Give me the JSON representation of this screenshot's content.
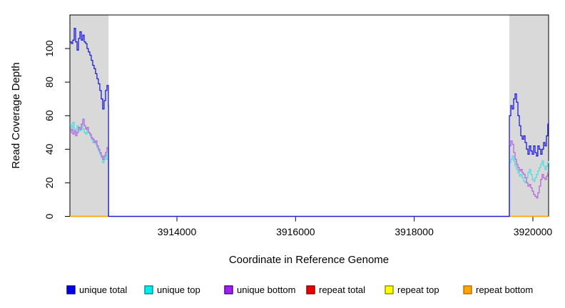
{
  "figure": {
    "xlabel": "Coordinate in Reference Genome",
    "ylabel": "Read Coverage Depth"
  },
  "legend": {
    "items": [
      {
        "label": "unique total",
        "fill": "#0000ee",
        "border": "#000090"
      },
      {
        "label": "unique top",
        "fill": "#00eeee",
        "border": "#008b8b"
      },
      {
        "label": "unique bottom",
        "fill": "#a020f0",
        "border": "#4b0082"
      },
      {
        "label": "repeat total",
        "fill": "#ee0000",
        "border": "#8b0000"
      },
      {
        "label": "repeat top",
        "fill": "#ffff00",
        "border": "#8b8b00"
      },
      {
        "label": "repeat bottom",
        "fill": "#ffa500",
        "border": "#b86b00"
      }
    ]
  },
  "chart_data": {
    "type": "line",
    "title": "",
    "xlabel": "Coordinate in Reference Genome",
    "ylabel": "Read Coverage Depth",
    "xlim": [
      3912196,
      3920265
    ],
    "ylim": [
      0,
      120
    ],
    "x_ticks": [
      3914000,
      3916000,
      3918000,
      3920000
    ],
    "x_tick_labels": [
      "3914000",
      "3916000",
      "3918000",
      "3920000"
    ],
    "y_ticks": [
      0,
      20,
      40,
      60,
      80,
      100
    ],
    "grid": false,
    "legend_position": "bottom",
    "highlight_color": "#d9d9d9",
    "highlight_regions": [
      [
        3912196,
        3912846
      ],
      [
        3919603,
        3920265
      ]
    ],
    "box_color": "#000000",
    "series": [
      {
        "name": "repeat total",
        "color": "#dd0000",
        "points": [
          [
            3912196,
            0
          ],
          [
            3920265,
            0
          ]
        ]
      },
      {
        "name": "repeat top",
        "color": "#ffff00",
        "points": [
          [
            3912196,
            0
          ],
          [
            3920265,
            0
          ]
        ]
      },
      {
        "name": "repeat bottom",
        "color": "#ffa500",
        "points": [
          [
            3912196,
            0
          ],
          [
            3920265,
            0
          ]
        ]
      },
      {
        "name": "unique top",
        "color": "#50dbe4",
        "points": [
          [
            3912196,
            55
          ],
          [
            3912220,
            53
          ],
          [
            3912244,
            56
          ],
          [
            3912268,
            52
          ],
          [
            3912292,
            50
          ],
          [
            3912316,
            54
          ],
          [
            3912340,
            53
          ],
          [
            3912364,
            51
          ],
          [
            3912388,
            55
          ],
          [
            3912412,
            52
          ],
          [
            3912436,
            50
          ],
          [
            3912460,
            49
          ],
          [
            3912484,
            52
          ],
          [
            3912508,
            50
          ],
          [
            3912532,
            48
          ],
          [
            3912556,
            46
          ],
          [
            3912580,
            44
          ],
          [
            3912604,
            45
          ],
          [
            3912628,
            43
          ],
          [
            3912652,
            41
          ],
          [
            3912676,
            39
          ],
          [
            3912700,
            37
          ],
          [
            3912724,
            35
          ],
          [
            3912748,
            32
          ],
          [
            3912772,
            34
          ],
          [
            3912796,
            37
          ],
          [
            3912820,
            34
          ],
          [
            3912844,
            31
          ],
          [
            3912846,
            0
          ],
          [
            3919603,
            0
          ],
          [
            3919604,
            32
          ],
          [
            3919628,
            34
          ],
          [
            3919652,
            36
          ],
          [
            3919676,
            33
          ],
          [
            3919700,
            30
          ],
          [
            3919724,
            28
          ],
          [
            3919748,
            26
          ],
          [
            3919772,
            24
          ],
          [
            3919796,
            25
          ],
          [
            3919820,
            23
          ],
          [
            3919844,
            21
          ],
          [
            3919868,
            20
          ],
          [
            3919892,
            23
          ],
          [
            3919916,
            26
          ],
          [
            3919940,
            28
          ],
          [
            3919964,
            25
          ],
          [
            3919988,
            22
          ],
          [
            3920012,
            21
          ],
          [
            3920036,
            23
          ],
          [
            3920060,
            25
          ],
          [
            3920084,
            27
          ],
          [
            3920108,
            29
          ],
          [
            3920132,
            31
          ],
          [
            3920156,
            33
          ],
          [
            3920180,
            30
          ],
          [
            3920204,
            28
          ],
          [
            3920228,
            30
          ],
          [
            3920252,
            32
          ],
          [
            3920265,
            33
          ]
        ]
      },
      {
        "name": "unique bottom",
        "color": "#b468dc",
        "points": [
          [
            3912196,
            50
          ],
          [
            3912220,
            52
          ],
          [
            3912244,
            49
          ],
          [
            3912268,
            51
          ],
          [
            3912292,
            48
          ],
          [
            3912316,
            50
          ],
          [
            3912340,
            53
          ],
          [
            3912364,
            52
          ],
          [
            3912388,
            55
          ],
          [
            3912412,
            58
          ],
          [
            3912436,
            54
          ],
          [
            3912460,
            52
          ],
          [
            3912484,
            53
          ],
          [
            3912508,
            50
          ],
          [
            3912532,
            49
          ],
          [
            3912556,
            47
          ],
          [
            3912580,
            46
          ],
          [
            3912604,
            44
          ],
          [
            3912628,
            45
          ],
          [
            3912652,
            42
          ],
          [
            3912676,
            40
          ],
          [
            3912700,
            38
          ],
          [
            3912724,
            36
          ],
          [
            3912748,
            34
          ],
          [
            3912772,
            36
          ],
          [
            3912796,
            38
          ],
          [
            3912820,
            41
          ],
          [
            3912844,
            40
          ],
          [
            3912846,
            0
          ],
          [
            3919603,
            0
          ],
          [
            3919604,
            42
          ],
          [
            3919628,
            45
          ],
          [
            3919652,
            43
          ],
          [
            3919676,
            38
          ],
          [
            3919700,
            34
          ],
          [
            3919724,
            31
          ],
          [
            3919748,
            29
          ],
          [
            3919772,
            27
          ],
          [
            3919796,
            28
          ],
          [
            3919820,
            26
          ],
          [
            3919844,
            25
          ],
          [
            3919868,
            23
          ],
          [
            3919892,
            20
          ],
          [
            3919916,
            18
          ],
          [
            3919940,
            19
          ],
          [
            3919964,
            17
          ],
          [
            3919988,
            15
          ],
          [
            3920012,
            13
          ],
          [
            3920036,
            12
          ],
          [
            3920060,
            11
          ],
          [
            3920084,
            14
          ],
          [
            3920108,
            18
          ],
          [
            3920132,
            22
          ],
          [
            3920156,
            25
          ],
          [
            3920180,
            23
          ],
          [
            3920204,
            22
          ],
          [
            3920228,
            24
          ],
          [
            3920252,
            26
          ],
          [
            3920265,
            26
          ]
        ]
      },
      {
        "name": "unique total",
        "color": "#1c1ce0",
        "points": [
          [
            3912196,
            104
          ],
          [
            3912220,
            103
          ],
          [
            3912244,
            105
          ],
          [
            3912268,
            112
          ],
          [
            3912292,
            104
          ],
          [
            3912316,
            99
          ],
          [
            3912340,
            106
          ],
          [
            3912364,
            110
          ],
          [
            3912388,
            105
          ],
          [
            3912412,
            108
          ],
          [
            3912436,
            104
          ],
          [
            3912460,
            103
          ],
          [
            3912484,
            100
          ],
          [
            3912508,
            98
          ],
          [
            3912532,
            96
          ],
          [
            3912556,
            93
          ],
          [
            3912580,
            90
          ],
          [
            3912604,
            88
          ],
          [
            3912628,
            85
          ],
          [
            3912652,
            82
          ],
          [
            3912676,
            79
          ],
          [
            3912700,
            75
          ],
          [
            3912724,
            70
          ],
          [
            3912748,
            64
          ],
          [
            3912772,
            69
          ],
          [
            3912796,
            75
          ],
          [
            3912820,
            78
          ],
          [
            3912844,
            66
          ],
          [
            3912846,
            63
          ],
          [
            3912846,
            0
          ],
          [
            3919603,
            0
          ],
          [
            3919604,
            60
          ],
          [
            3919628,
            66
          ],
          [
            3919652,
            64
          ],
          [
            3919676,
            70
          ],
          [
            3919700,
            73
          ],
          [
            3919724,
            68
          ],
          [
            3919748,
            60
          ],
          [
            3919772,
            54
          ],
          [
            3919796,
            48
          ],
          [
            3919820,
            46
          ],
          [
            3919844,
            48
          ],
          [
            3919868,
            44
          ],
          [
            3919892,
            40
          ],
          [
            3919916,
            37
          ],
          [
            3919940,
            42
          ],
          [
            3919964,
            39
          ],
          [
            3919988,
            37
          ],
          [
            3920012,
            42
          ],
          [
            3920036,
            38
          ],
          [
            3920060,
            36
          ],
          [
            3920084,
            42
          ],
          [
            3920108,
            40
          ],
          [
            3920132,
            37
          ],
          [
            3920156,
            40
          ],
          [
            3920180,
            44
          ],
          [
            3920204,
            42
          ],
          [
            3920228,
            48
          ],
          [
            3920252,
            55
          ],
          [
            3920265,
            56
          ]
        ]
      }
    ]
  }
}
